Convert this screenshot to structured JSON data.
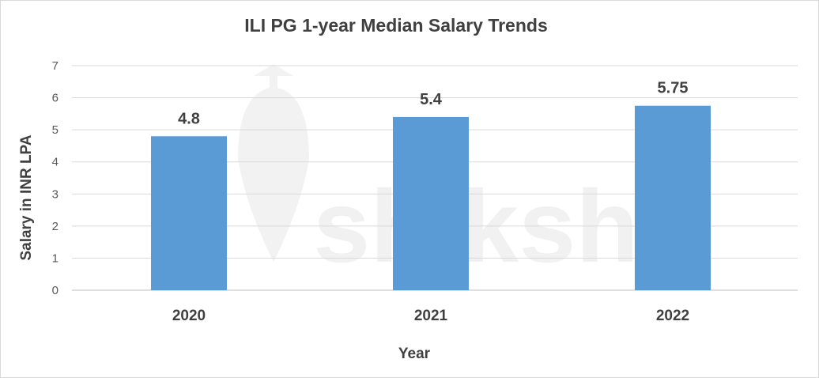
{
  "chart_data": {
    "type": "bar",
    "title": "ILI PG 1-year Median Salary Trends",
    "xlabel": "Year",
    "ylabel": "Salary in INR LPA",
    "categories": [
      "2020",
      "2021",
      "2022"
    ],
    "values": [
      4.8,
      5.4,
      5.75
    ],
    "data_labels": [
      "4.8",
      "5.4",
      "5.75"
    ],
    "y_ticks": [
      "0",
      "1",
      "2",
      "3",
      "4",
      "5",
      "6",
      "7"
    ],
    "ylim": [
      0,
      7
    ],
    "grid": true,
    "legend": "none",
    "bar_color": "#5b9bd5"
  },
  "watermark": {
    "text": "shiksha"
  }
}
